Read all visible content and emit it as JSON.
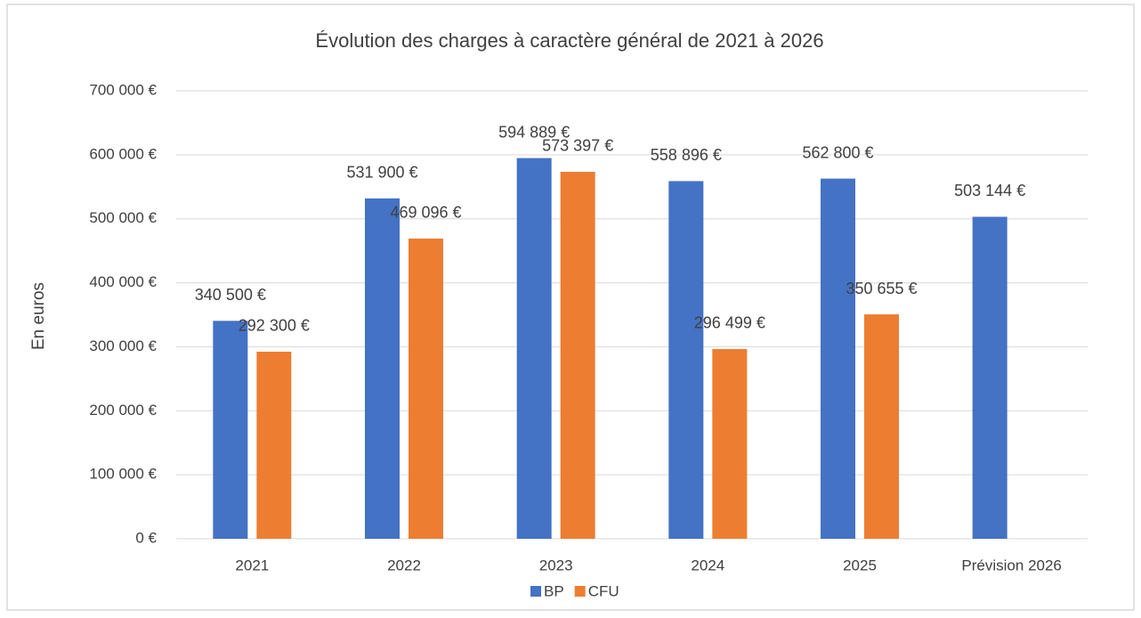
{
  "chart_data": {
    "type": "bar",
    "title": "Évolution des charges à caractère général de 2021 à 2026",
    "y_label": "En euros",
    "categories": [
      "2021",
      "2022",
      "2023",
      "2024",
      "2025",
      "Prévision 2026"
    ],
    "series": [
      {
        "name": "BP",
        "color": "#4472c4",
        "values": [
          340500,
          531900,
          594889,
          558896,
          562800,
          503144
        ],
        "value_labels": [
          "340 500 €",
          "531 900 €",
          "594 889 €",
          "558 896 €",
          "562 800 €",
          "503 144 €"
        ]
      },
      {
        "name": "CFU",
        "color": "#ed7d31",
        "values": [
          292300,
          469096,
          573397,
          296499,
          350655,
          null
        ],
        "value_labels": [
          "292 300 €",
          "469 096 €",
          "573 397 €",
          "296 499 €",
          "350 655 €",
          null
        ]
      }
    ],
    "ylim": [
      0,
      700000
    ],
    "yticks": [
      {
        "value": 0,
        "label": "0 €"
      },
      {
        "value": 100000,
        "label": "100 000 €"
      },
      {
        "value": 200000,
        "label": "200 000 €"
      },
      {
        "value": 300000,
        "label": "300 000 €"
      },
      {
        "value": 400000,
        "label": "400 000 €"
      },
      {
        "value": 500000,
        "label": "500 000 €"
      },
      {
        "value": 600000,
        "label": "600 000 €"
      },
      {
        "value": 700000,
        "label": "700 000 €"
      }
    ],
    "grid": true,
    "legend": "bottom"
  }
}
